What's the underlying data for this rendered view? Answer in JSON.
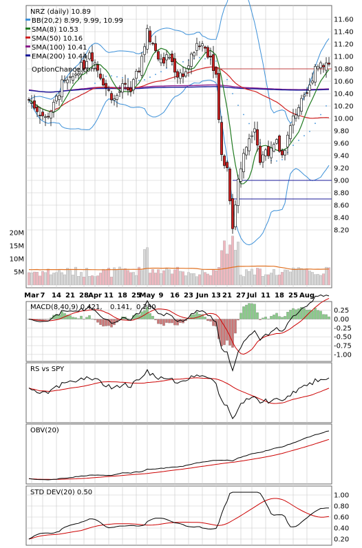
{
  "chart_data": [
    {
      "panel": "price",
      "type": "candlestick",
      "title": "NRZ (daily) 10.89",
      "watermark": "OptionChance.com",
      "legend": [
        {
          "label": "BB(20,2) 8.99, 9.99, 10.99",
          "color": "#3a8fd8"
        },
        {
          "label": "SMA(8) 10.53",
          "color": "#1f7a1f"
        },
        {
          "label": "SMA(50) 10.16",
          "color": "#d02020"
        },
        {
          "label": "SMA(100) 10.41",
          "color": "#8a1a8a"
        },
        {
          "label": "EMA(200) 10.44",
          "color": "#1a1a9a"
        }
      ],
      "x_tick_labels": [
        "Mar",
        "7",
        "14",
        "21",
        "28",
        "Apr",
        "11",
        "18",
        "25",
        "May",
        "9",
        "16",
        "23",
        "Jun",
        "13",
        "21",
        "27",
        "Jul",
        "11",
        "18",
        "25",
        "Aug"
      ],
      "y_tick_labels": [
        "11.60",
        "11.40",
        "11.20",
        "11.00",
        "10.80",
        "10.60",
        "10.40",
        "10.20",
        "10.00",
        "9.80",
        "9.60",
        "9.40",
        "9.20",
        "9.00",
        "8.80",
        "8.60",
        "8.40",
        "8.20"
      ],
      "ylim": [
        8.0,
        11.7
      ],
      "support_resistance": [
        10.8,
        9.0,
        8.7
      ],
      "volume_tick_labels": [
        "20M",
        "15M",
        "10M",
        "5M"
      ],
      "volume_ylim": [
        0,
        25
      ],
      "volume_unit": "M",
      "volume_avg": 6.5,
      "colors": {
        "up": "#ffffff",
        "down": "#cc2222",
        "volume_up": "#d9d9d9",
        "volume_down": "#f0b8c0",
        "volume_avg": "#e07020",
        "grid": "#c8c8c8",
        "hline": "#1a1a9a",
        "hline_top": "#c04040"
      }
    },
    {
      "panel": "macd",
      "type": "line",
      "label_prefix": "MACD(8,40,9) 0.421,",
      "label_signal": "0.141,",
      "label_hist": "0.280",
      "label_signal_color": "#cc0000",
      "label_hist_color": "#1a4fd8",
      "y_tick_labels": [
        "0.25",
        "0.00",
        "-0.25",
        "-0.50",
        "-0.75",
        "-1.00"
      ],
      "ylim": [
        -1.1,
        0.4
      ],
      "colors": {
        "macd": "#000000",
        "signal": "#cc0000",
        "hist_pos": "#88cc88",
        "hist_neg": "#cc7777"
      }
    },
    {
      "panel": "rs",
      "type": "line",
      "label": "RS vs SPY",
      "colors": {
        "line": "#000000",
        "avg": "#cc0000"
      }
    },
    {
      "panel": "obv",
      "type": "line",
      "label": "OBV(20)",
      "colors": {
        "line": "#000000",
        "avg": "#cc0000"
      }
    },
    {
      "panel": "std",
      "type": "line",
      "label": "STD DEV(20) 0.50",
      "y_tick_labels": [
        "1.00",
        "0.80",
        "0.60",
        "0.40",
        "0.20"
      ],
      "ylim": [
        0.15,
        1.1
      ],
      "colors": {
        "line": "#000000",
        "avg": "#cc0000"
      }
    }
  ]
}
